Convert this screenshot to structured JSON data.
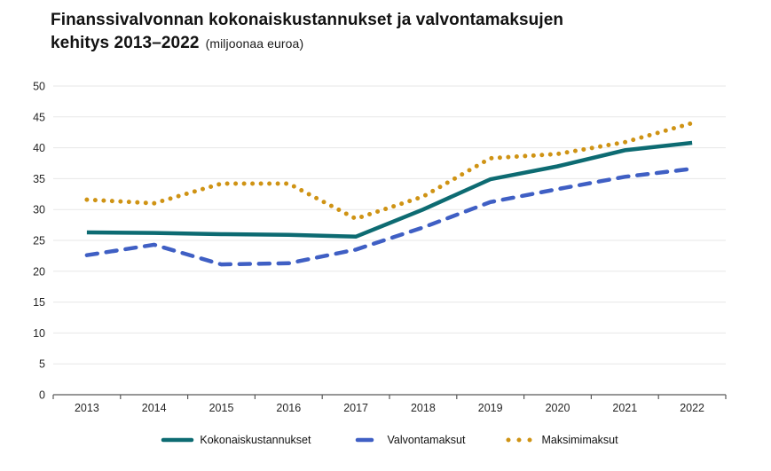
{
  "title": {
    "line1": "Finanssivalvonnan kokonaiskustannukset ja valvontamaksujen",
    "line2_bold": "kehitys 2013–2022",
    "line2_note": "(miljoonaa euroa)"
  },
  "chart_data": {
    "type": "line",
    "categories": [
      "2013",
      "2014",
      "2015",
      "2016",
      "2017",
      "2018",
      "2019",
      "2020",
      "2021",
      "2022"
    ],
    "series": [
      {
        "name": "Kokonaiskustannukset",
        "style": "solid",
        "color": "#0d6b72",
        "values": [
          26.3,
          26.2,
          26.0,
          25.9,
          25.6,
          30.0,
          34.9,
          37.0,
          39.6,
          40.8
        ]
      },
      {
        "name": "Valvontamaksut",
        "style": "dashed",
        "color": "#3f5fc4",
        "values": [
          22.6,
          24.3,
          21.1,
          21.3,
          23.5,
          27.1,
          31.2,
          33.3,
          35.3,
          36.6
        ]
      },
      {
        "name": "Maksimimaksut",
        "style": "dotted",
        "color": "#cf9314",
        "values": [
          31.6,
          31.0,
          34.2,
          34.2,
          28.5,
          32.1,
          38.3,
          39.0,
          40.9,
          44.0
        ]
      }
    ],
    "ylim": [
      0,
      50
    ],
    "ytick_step": 5,
    "yticks": [
      "0",
      "5",
      "10",
      "15",
      "20",
      "25",
      "30",
      "35",
      "40",
      "45",
      "50"
    ],
    "grid": true,
    "legend_position": "bottom",
    "colors": {
      "gridline": "#e7e7e7",
      "axis": "#595959",
      "tick_label": "#262626"
    }
  }
}
